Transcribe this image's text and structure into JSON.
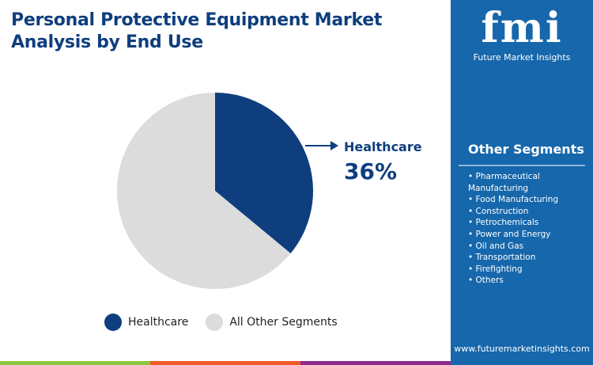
{
  "title": "Personal Protective Equipment Market Analysis by End Use",
  "chart_data": {
    "type": "pie",
    "title": "Personal Protective Equipment Market Analysis by End Use",
    "slices": [
      {
        "label": "Healthcare",
        "value": 36,
        "color": "#0e3e7e"
      },
      {
        "label": "All Other Segments",
        "value": 64,
        "color": "#dcdcdc"
      }
    ],
    "callout": {
      "label": "Healthcare",
      "value_text": "36%"
    },
    "legend_position": "bottom"
  },
  "legend": [
    "Healthcare",
    "All Other Segments"
  ],
  "panel": {
    "logo_text": "fmi",
    "brand": "Future Market Insights",
    "heading": "Other Segments",
    "items": [
      "• Pharmaceutical Manufacturing",
      "• Food Manufacturing",
      "• Construction",
      "• Petrochemicals",
      "• Power and Energy",
      "• Oil and Gas",
      "• Transportation",
      "• Firefighting",
      "• Others"
    ],
    "url": "www.futuremarketinsights.com",
    "color": "#1667ab"
  },
  "footer_colors": [
    "#8dc63f",
    "#f05a28",
    "#8e2a8b"
  ]
}
